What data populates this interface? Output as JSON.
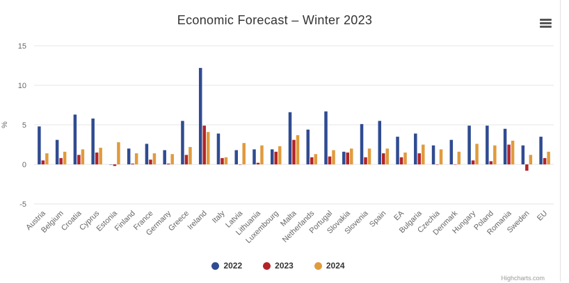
{
  "title": "Economic Forecast – Winter 2023",
  "menu_icon": "hamburger-menu-icon",
  "credit": "Highcharts.com",
  "chart_data": {
    "type": "bar",
    "title": "Economic Forecast – Winter 2023",
    "ylabel": "%",
    "xlabel": "",
    "ylim": [
      -5,
      15
    ],
    "yticks": [
      -5,
      0,
      5,
      10,
      15
    ],
    "grid": true,
    "legend_position": "bottom",
    "categories": [
      "Austria",
      "Belgium",
      "Croatia",
      "Cyprus",
      "Estonia",
      "Finland",
      "France",
      "Germany",
      "Greece",
      "Ireland",
      "Italy",
      "Latvia",
      "Lithuania",
      "Luxembourg",
      "Malta",
      "Netherlands",
      "Portugal",
      "Slovakia",
      "Slovenia",
      "Spain",
      "EA",
      "Bulgaria",
      "Czechia",
      "Denmark",
      "Hungary",
      "Poland",
      "Romania",
      "Sweden",
      "EU"
    ],
    "series": [
      {
        "name": "2022",
        "color": "#2f4b91",
        "values": [
          4.8,
          3.1,
          6.3,
          5.8,
          0.0,
          2.0,
          2.6,
          1.8,
          5.5,
          12.2,
          3.9,
          1.8,
          1.9,
          1.9,
          6.6,
          4.4,
          6.7,
          1.6,
          5.1,
          5.5,
          3.5,
          3.9,
          2.4,
          3.1,
          4.9,
          4.9,
          4.5,
          2.4,
          3.5
        ]
      },
      {
        "name": "2023",
        "color": "#b22428",
        "values": [
          0.5,
          0.8,
          1.2,
          1.5,
          -0.2,
          0.1,
          0.6,
          0.1,
          1.2,
          4.9,
          0.8,
          0.0,
          0.2,
          1.6,
          3.1,
          0.9,
          1.0,
          1.5,
          0.9,
          1.4,
          0.9,
          1.4,
          0.0,
          0.0,
          0.5,
          0.4,
          2.5,
          -0.8,
          0.8
        ]
      },
      {
        "name": "2024",
        "color": "#e09b3d",
        "values": [
          1.4,
          1.6,
          1.9,
          2.1,
          2.8,
          1.4,
          1.4,
          1.3,
          2.2,
          4.1,
          0.9,
          2.7,
          2.4,
          2.3,
          3.7,
          1.3,
          1.8,
          2.0,
          2.0,
          2.0,
          1.5,
          2.5,
          1.9,
          1.6,
          2.6,
          2.4,
          3.0,
          1.2,
          1.6
        ]
      }
    ]
  }
}
